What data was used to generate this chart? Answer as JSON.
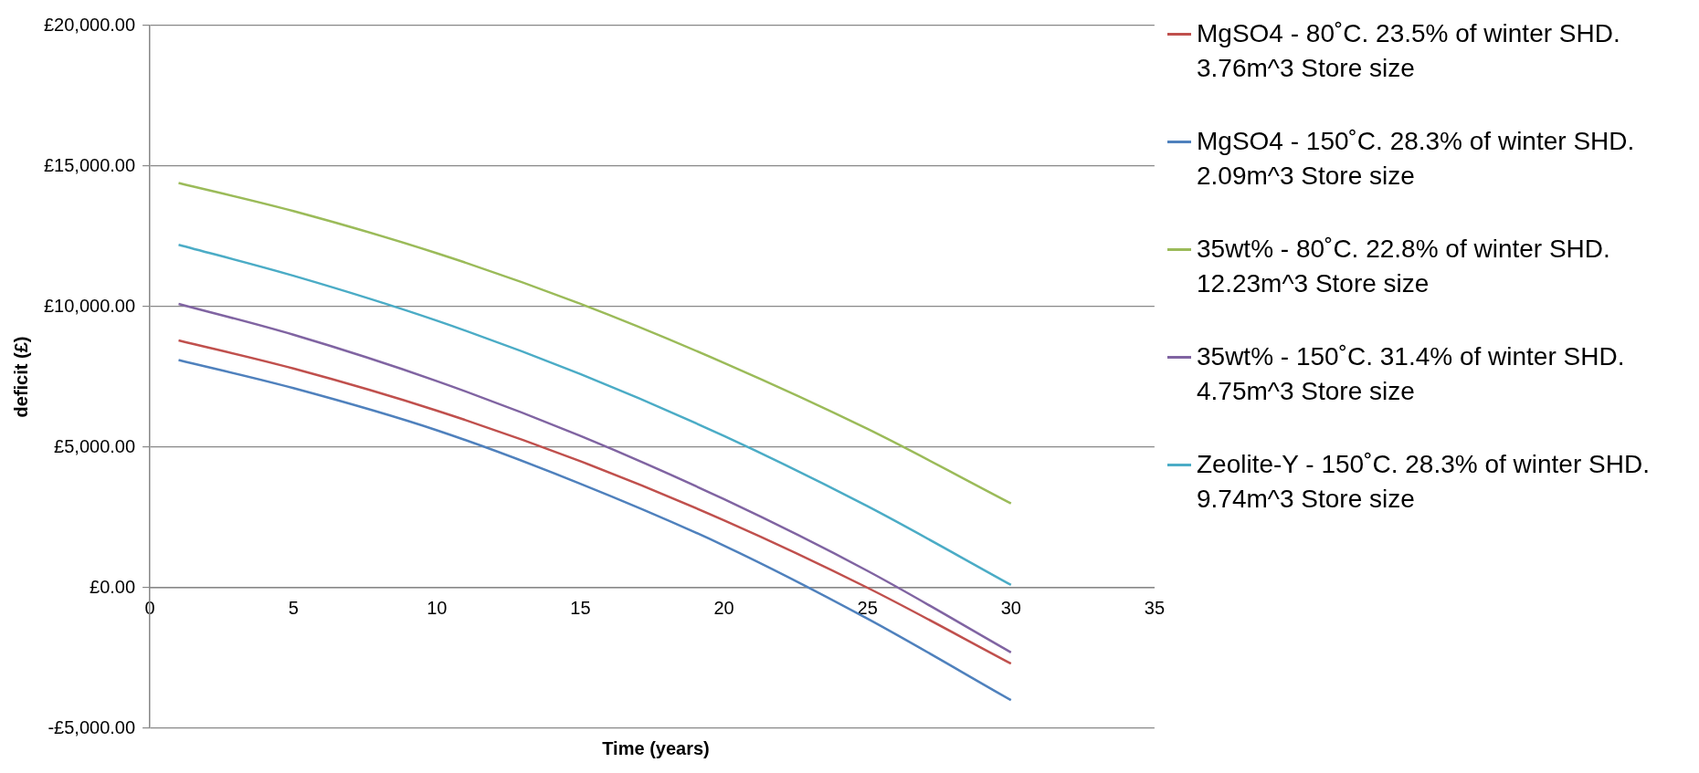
{
  "chart_data": {
    "type": "line",
    "xlabel": "Time (years)",
    "ylabel": "deficit (£)",
    "x": [
      1,
      5,
      10,
      15,
      20,
      25,
      30
    ],
    "series": [
      {
        "name": "MgSO4 - 80˚C. 23.5% of winter SHD.  3.76m^3 Store size",
        "color": "#c0504d",
        "values": [
          8800,
          7800,
          6300,
          4500,
          2400,
          0,
          -2700
        ]
      },
      {
        "name": "MgSO4 - 150˚C. 28.3% of winter SHD.  2.09m^3 Store size",
        "color": "#4f81bd",
        "values": [
          8100,
          7100,
          5600,
          3700,
          1500,
          -1100,
          -4000
        ]
      },
      {
        "name": "35wt% - 80˚C. 22.8% of winter SHD.  12.23m^3 Store size",
        "color": "#9bbb59",
        "values": [
          14400,
          13400,
          11900,
          10100,
          8000,
          5650,
          3000
        ]
      },
      {
        "name": "35wt% - 150˚C. 31.4% of winter SHD.  4.75m^3 Store size",
        "color": "#8064a2",
        "values": [
          10100,
          9000,
          7350,
          5400,
          3150,
          600,
          -2300
        ]
      },
      {
        "name": "Zeolite-Y - 150˚C. 28.3% of winter SHD.  9.74m^3 Store size",
        "color": "#4bacc6",
        "values": [
          12200,
          11100,
          9500,
          7600,
          5400,
          2900,
          100
        ]
      }
    ],
    "xlim": [
      0,
      35
    ],
    "xticks": [
      0,
      5,
      10,
      15,
      20,
      25,
      30,
      35
    ],
    "ylim": [
      -5000,
      20000
    ],
    "yticks": [
      {
        "value": -5000,
        "label": "-£5,000.00"
      },
      {
        "value": 0,
        "label": "£0.00"
      },
      {
        "value": 5000,
        "label": "£5,000.00"
      },
      {
        "value": 10000,
        "label": "£10,000.00"
      },
      {
        "value": 15000,
        "label": "£15,000.00"
      },
      {
        "value": 20000,
        "label": "£20,000.00"
      }
    ],
    "grid": "y",
    "legend": "right",
    "marker": "none",
    "line_style": "solid"
  }
}
